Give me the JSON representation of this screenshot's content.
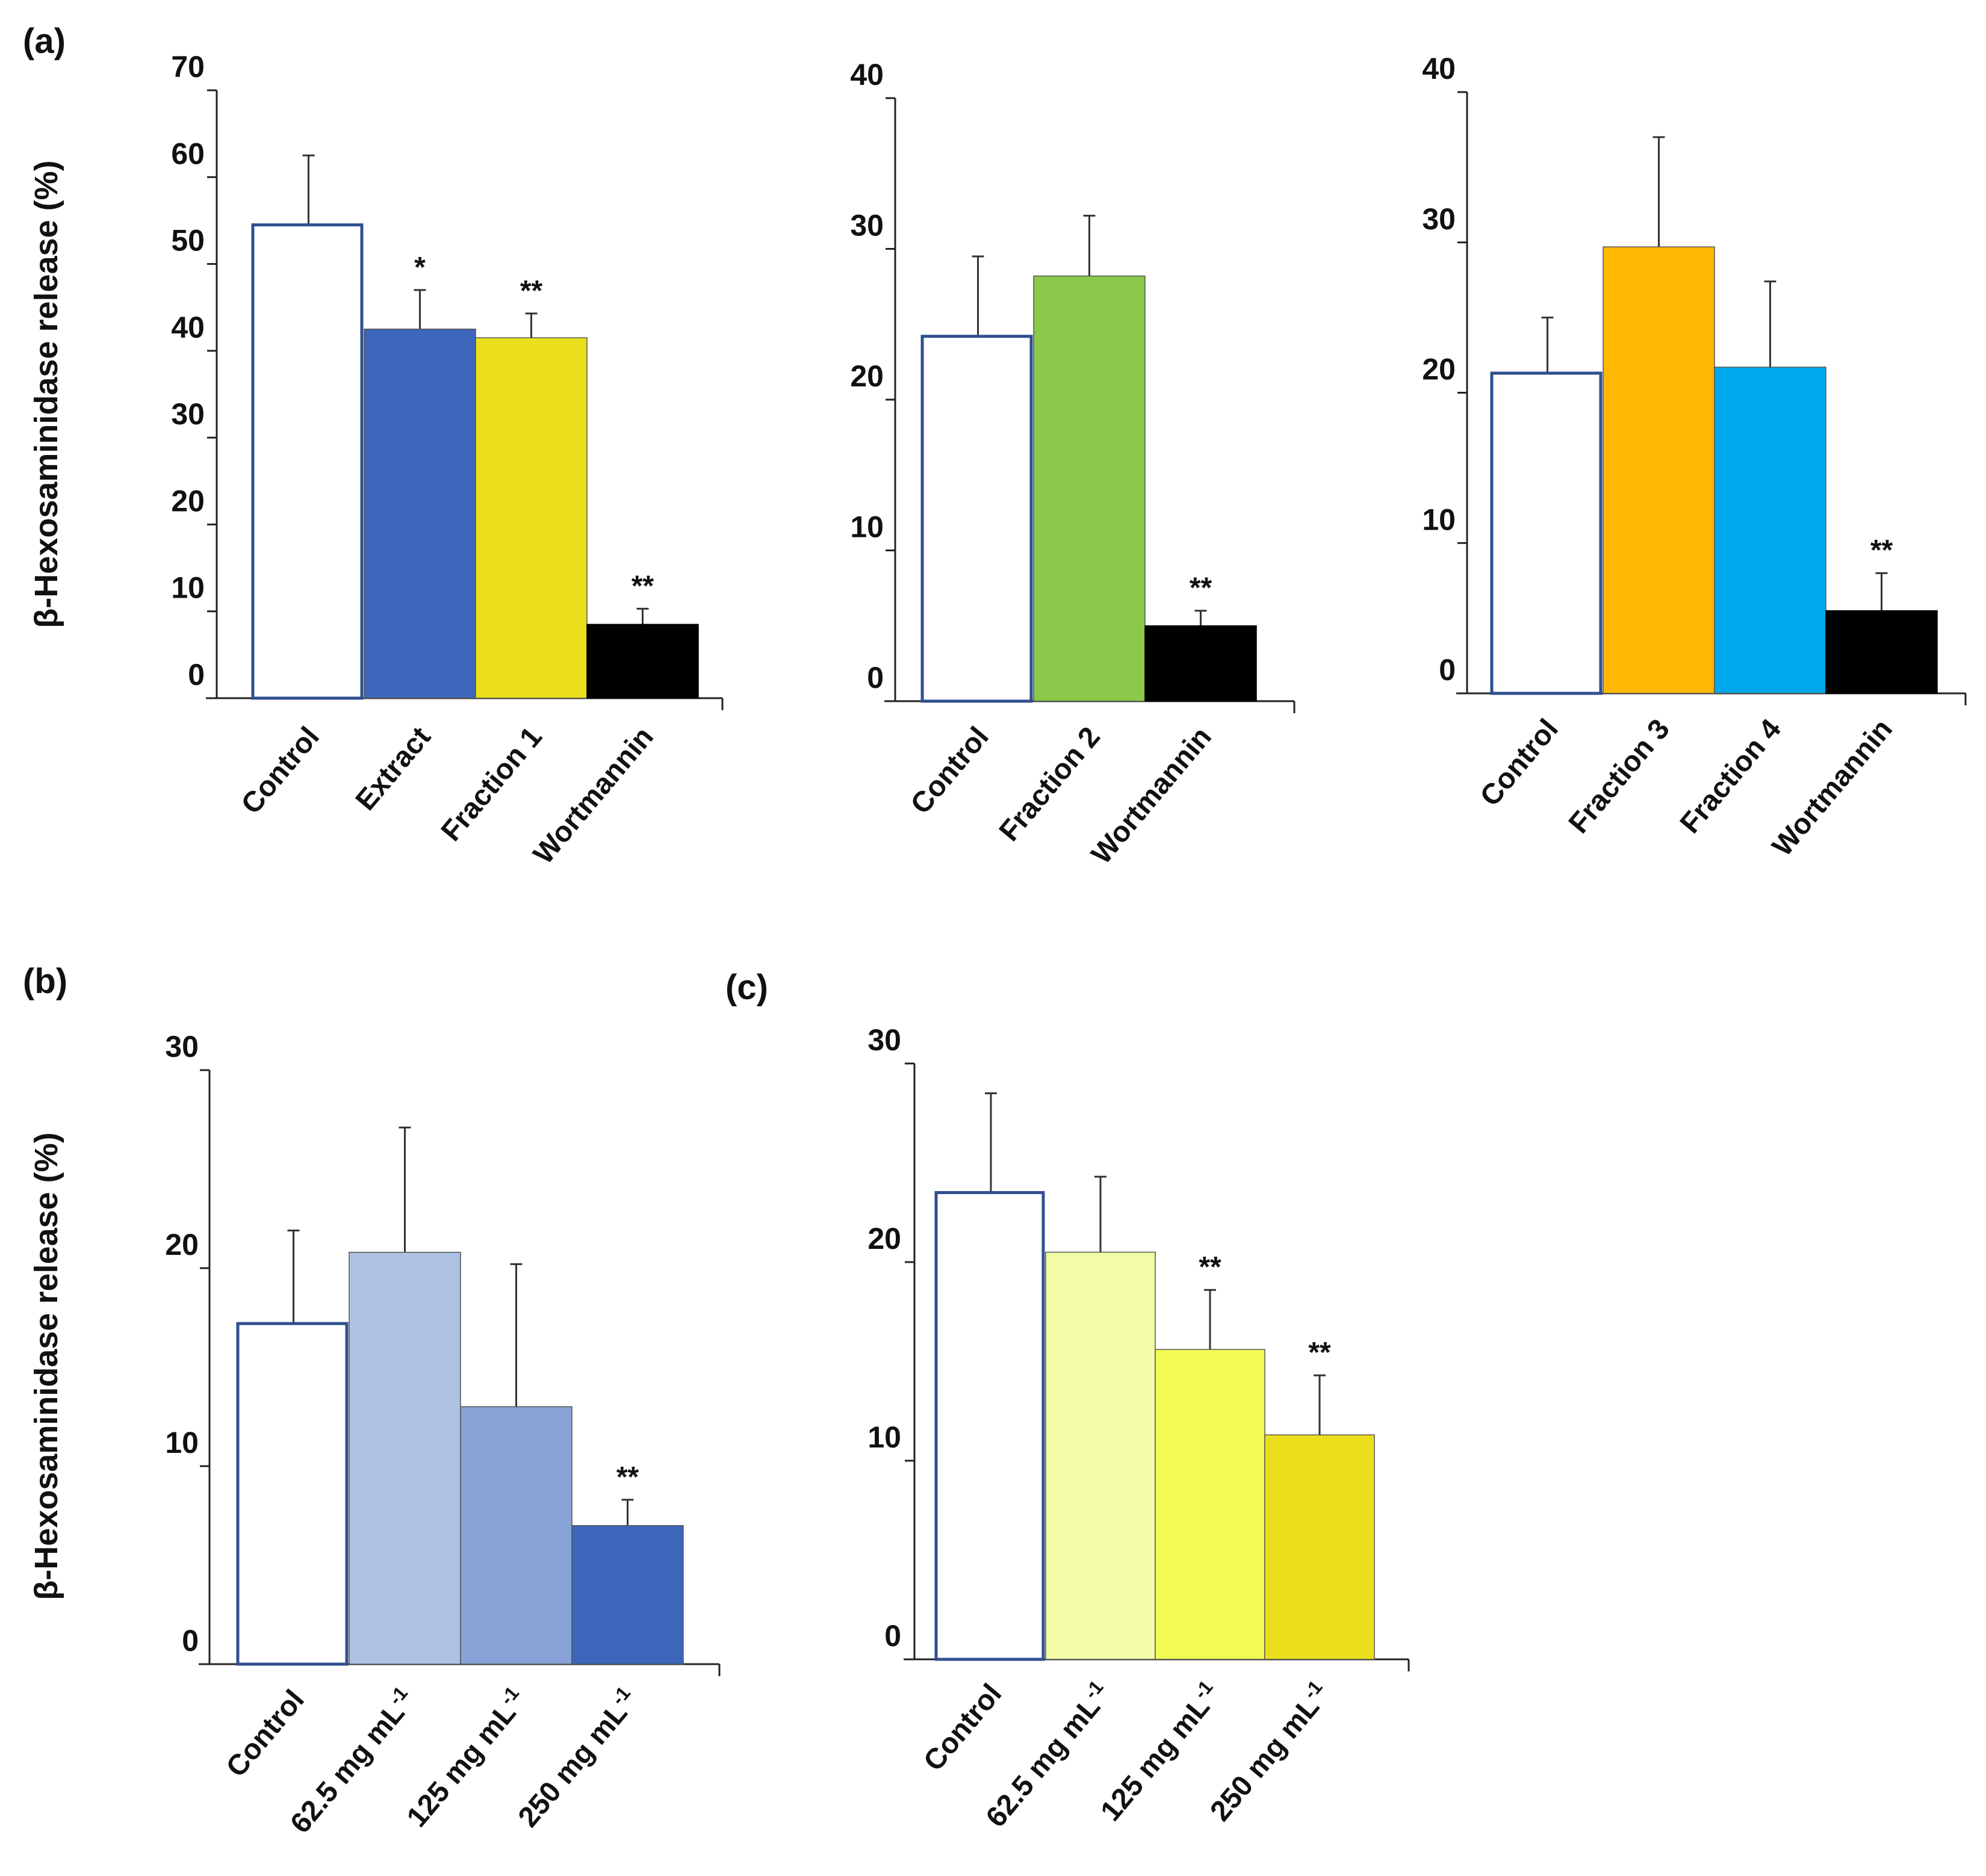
{
  "panel_labels": [
    "(a)",
    "(b)",
    "(c)"
  ],
  "y_axis_label": "β-Hexosaminidase release (%)",
  "chart_data": [
    {
      "type": "bar",
      "panel": "(a)",
      "categories": [
        "Control",
        "Extract",
        "Fraction 1",
        "Wortmannin"
      ],
      "values": [
        54.5,
        42.5,
        41.5,
        8.5
      ],
      "errors": [
        8.0,
        4.5,
        2.8,
        1.8
      ],
      "significance": [
        "",
        "*",
        "**",
        "**"
      ],
      "colors": [
        "#ffffff",
        "#3d66bb",
        "#ebdf1c",
        "#000000"
      ],
      "ylim": [
        0,
        70
      ],
      "yticks": [
        0,
        10,
        20,
        30,
        40,
        50,
        60,
        70
      ],
      "ylabel": "β-Hexosaminidase release (%)"
    },
    {
      "type": "bar",
      "panel": "(a)",
      "categories": [
        "Control",
        "Fraction 2",
        "Wortmannin"
      ],
      "values": [
        24.2,
        28.2,
        5.0
      ],
      "errors": [
        5.3,
        4.0,
        1.0
      ],
      "significance": [
        "",
        "",
        "**"
      ],
      "colors": [
        "#ffffff",
        "#8bc94a",
        "#000000"
      ],
      "ylim": [
        0,
        40
      ],
      "yticks": [
        0,
        10,
        20,
        30,
        40
      ],
      "ylabel": ""
    },
    {
      "type": "bar",
      "panel": "(a)",
      "categories": [
        "Control",
        "Fraction 3",
        "Fraction 4",
        "Wortmannin"
      ],
      "values": [
        21.3,
        29.7,
        21.7,
        5.5
      ],
      "errors": [
        3.7,
        7.3,
        5.7,
        2.5
      ],
      "significance": [
        "",
        "",
        "",
        "**"
      ],
      "colors": [
        "#ffffff",
        "#ffb703",
        "#00a7ec",
        "#000000"
      ],
      "ylim": [
        0,
        40
      ],
      "yticks": [
        0,
        10,
        20,
        30,
        40
      ],
      "ylabel": ""
    },
    {
      "type": "bar",
      "panel": "(b)",
      "categories": [
        "Control",
        "62.5 mg mL",
        "125 mg mL",
        "250 mg mL"
      ],
      "category_superscripts": [
        "",
        "-1",
        "-1",
        "-1"
      ],
      "values": [
        17.2,
        20.8,
        13.0,
        7.0
      ],
      "errors": [
        4.7,
        6.3,
        7.2,
        1.3
      ],
      "significance": [
        "",
        "",
        "",
        "**"
      ],
      "colors": [
        "#ffffff",
        "#adc1e3",
        "#86a2d6",
        "#3d66bb"
      ],
      "ylim": [
        0,
        30
      ],
      "yticks": [
        0,
        10,
        20,
        30
      ],
      "ylabel": "β-Hexosaminidase release (%)"
    },
    {
      "type": "bar",
      "panel": "(c)",
      "categories": [
        "Control",
        "62.5 mg mL",
        "125 mg mL",
        "250 mg mL"
      ],
      "category_superscripts": [
        "",
        "-1",
        "-1",
        "-1"
      ],
      "values": [
        23.5,
        20.5,
        15.6,
        11.3
      ],
      "errors": [
        5.0,
        3.8,
        3.0,
        3.0
      ],
      "significance": [
        "",
        "",
        "**",
        "**"
      ],
      "colors": [
        "#ffffff",
        "#f3fca6",
        "#f2fb52",
        "#ebdf1c"
      ],
      "ylim": [
        0,
        30
      ],
      "yticks": [
        0,
        10,
        20,
        30
      ],
      "ylabel": ""
    }
  ]
}
